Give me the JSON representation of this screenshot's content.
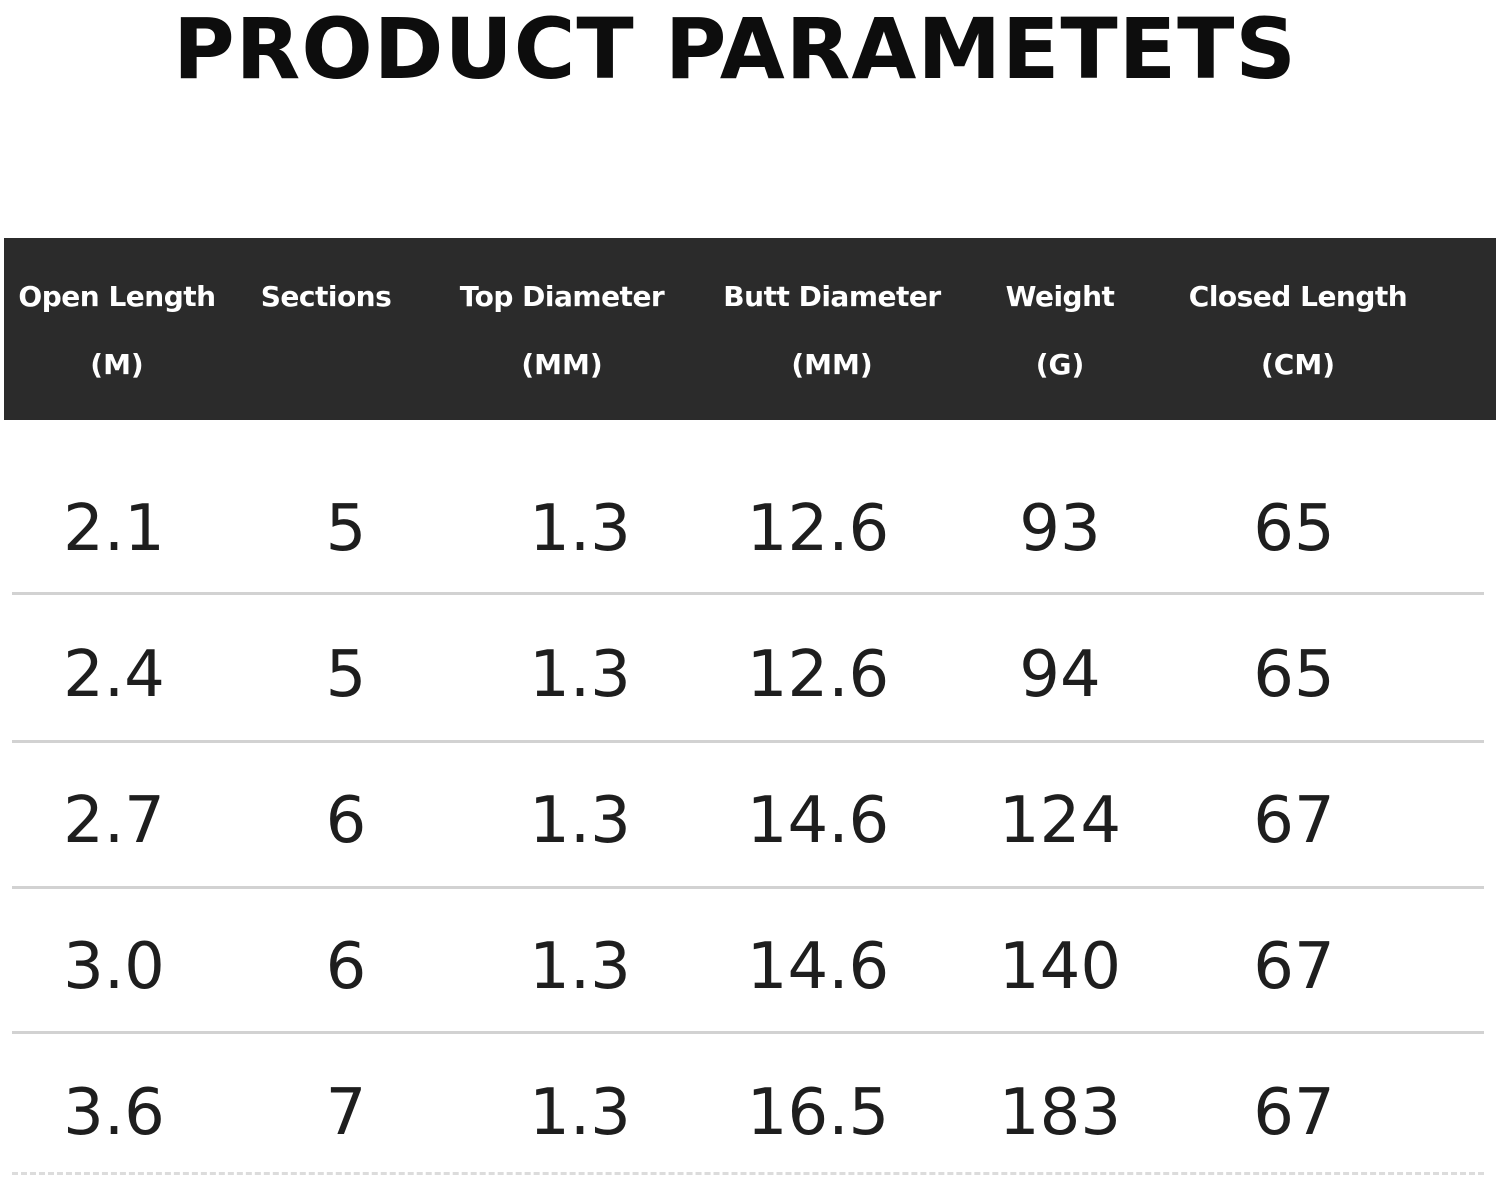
{
  "title": "PRODUCT PARAMETETS",
  "table": {
    "headers": [
      {
        "line1": "Open Length",
        "line2": "(M)"
      },
      {
        "line1": "Sections",
        "line2": ""
      },
      {
        "line1": "Top Diameter",
        "line2": "(MM)"
      },
      {
        "line1": "Butt Diameter",
        "line2": "(MM)"
      },
      {
        "line1": "Weight",
        "line2": "(G)"
      },
      {
        "line1": "Closed Length",
        "line2": "(CM)"
      }
    ],
    "rows": [
      [
        "2.1",
        "5",
        "1.3",
        "12.6",
        "93",
        "65"
      ],
      [
        "2.4",
        "5",
        "1.3",
        "12.6",
        "94",
        "65"
      ],
      [
        "2.7",
        "6",
        "1.3",
        "14.6",
        "124",
        "67"
      ],
      [
        "3.0",
        "6",
        "1.3",
        "14.6",
        "140",
        "67"
      ],
      [
        "3.6",
        "7",
        "1.3",
        "16.5",
        "183",
        "67"
      ]
    ]
  }
}
